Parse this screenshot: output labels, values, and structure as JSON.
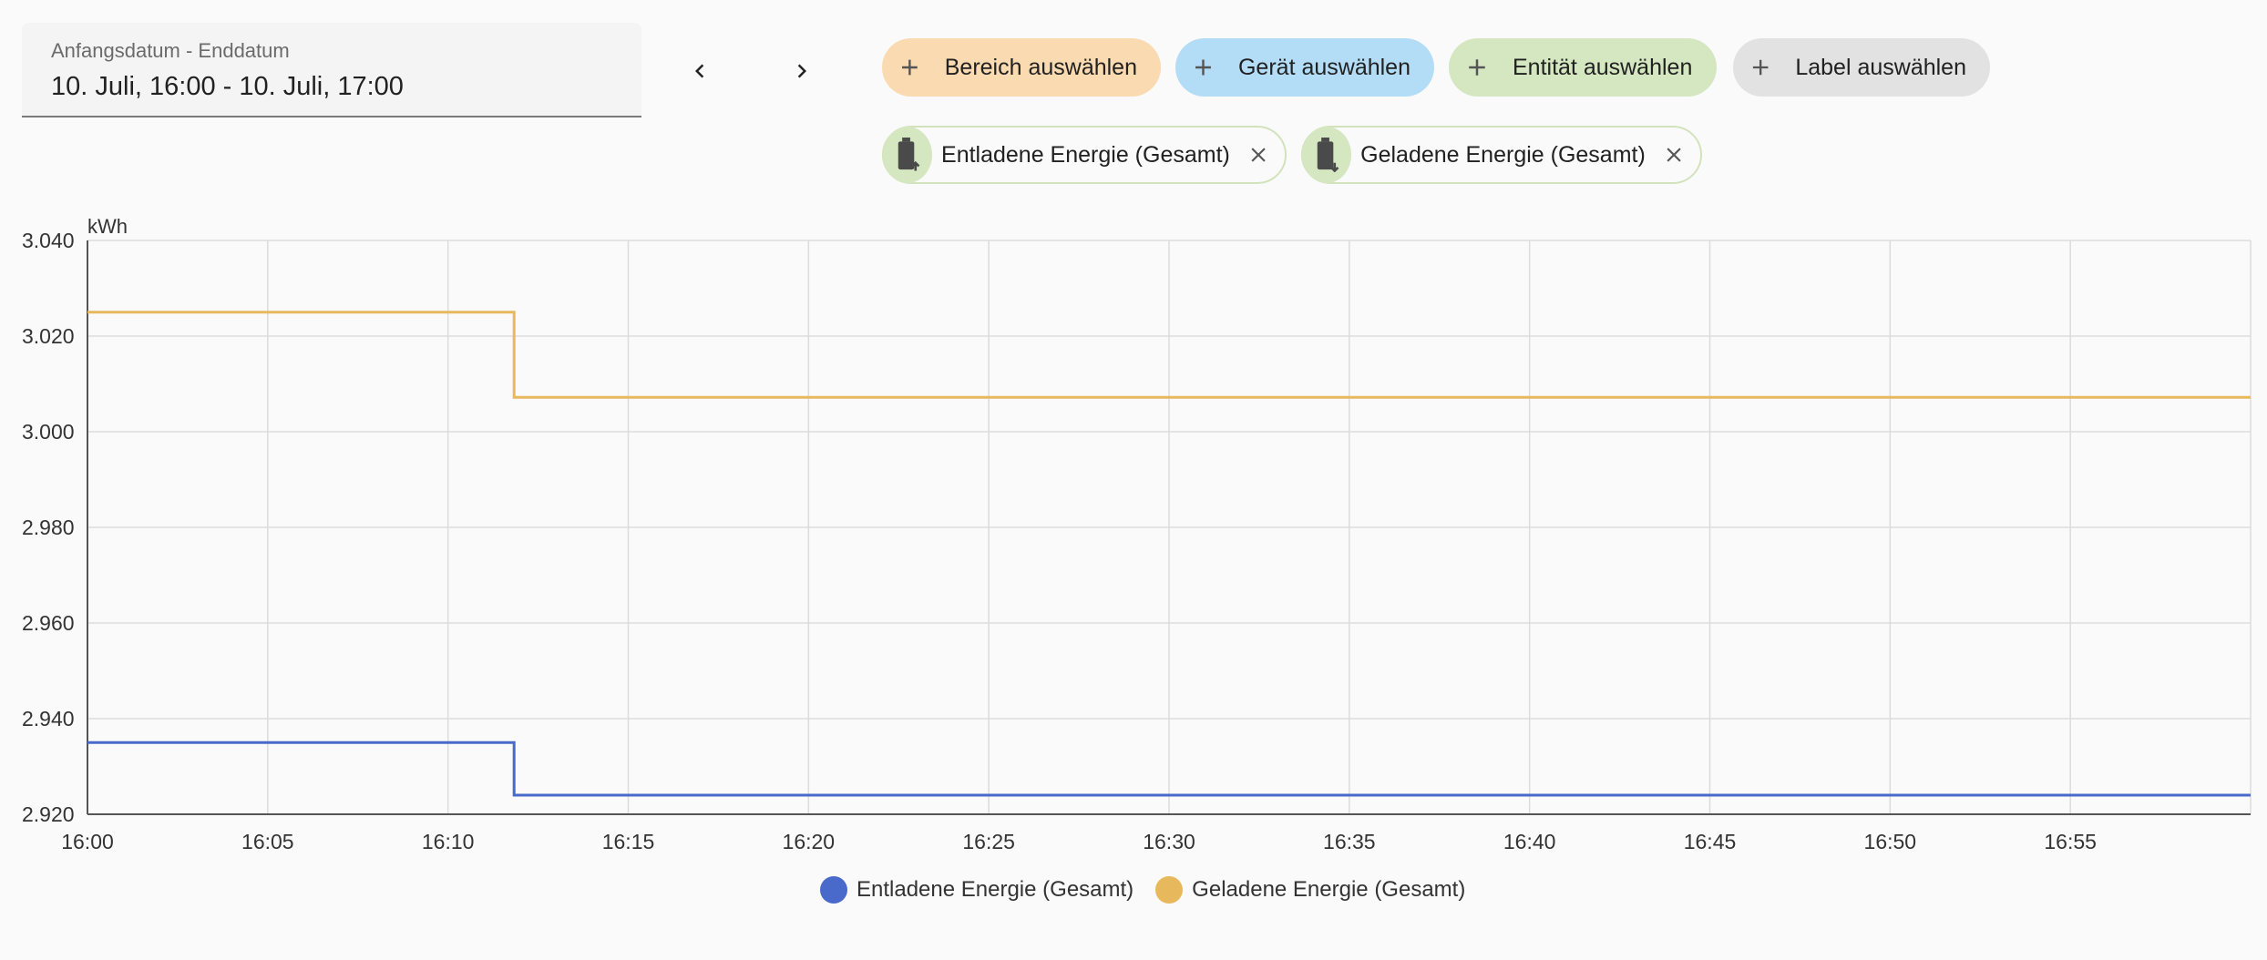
{
  "date_range": {
    "label": "Anfangsdatum - Enddatum",
    "value": "10. Juli, 16:00 - 10. Juli, 17:00"
  },
  "nav": {
    "prev_icon": "chevron-left-icon",
    "next_icon": "chevron-right-icon"
  },
  "target_chips": [
    {
      "label": "Bereich auswählen",
      "color": "#fadab0"
    },
    {
      "label": "Gerät auswählen",
      "color": "#b3dcf6"
    },
    {
      "label": "Entität auswählen",
      "color": "#d5e7c1"
    },
    {
      "label": "Label auswählen",
      "color": "#e2e2e2"
    }
  ],
  "selected_entities": [
    {
      "label": "Entladene Energie (Gesamt)",
      "icon": "battery-arrow-up-icon"
    },
    {
      "label": "Geladene Energie (Gesamt)",
      "icon": "battery-arrow-down-icon"
    }
  ],
  "chart_data": {
    "type": "line",
    "step": true,
    "ylabel": "kWh",
    "ylim": [
      2.92,
      3.04
    ],
    "y_ticks": [
      "3.040",
      "3.020",
      "3.000",
      "2.980",
      "2.960",
      "2.940",
      "2.920"
    ],
    "x_ticks": [
      "16:00",
      "16:05",
      "16:10",
      "16:15",
      "16:20",
      "16:25",
      "16:30",
      "16:35",
      "16:40",
      "16:45",
      "16:50",
      "16:55"
    ],
    "xlim": [
      "16:00",
      "17:00"
    ],
    "grid": true,
    "legend_position": "bottom-center",
    "series": [
      {
        "name": "Entladene Energie (Gesamt)",
        "color": "#4a6acb",
        "points": [
          {
            "x": "16:00",
            "y": 2.935
          },
          {
            "x": "16:11:50",
            "y": 2.935
          },
          {
            "x": "16:11:50",
            "y": 2.924
          },
          {
            "x": "17:00",
            "y": 2.924
          }
        ]
      },
      {
        "name": "Geladene Energie (Gesamt)",
        "color": "#e8b85c",
        "points": [
          {
            "x": "16:00",
            "y": 3.025
          },
          {
            "x": "16:11:50",
            "y": 3.025
          },
          {
            "x": "16:11:50",
            "y": 3.0072
          },
          {
            "x": "17:00",
            "y": 3.0072
          }
        ]
      }
    ]
  }
}
